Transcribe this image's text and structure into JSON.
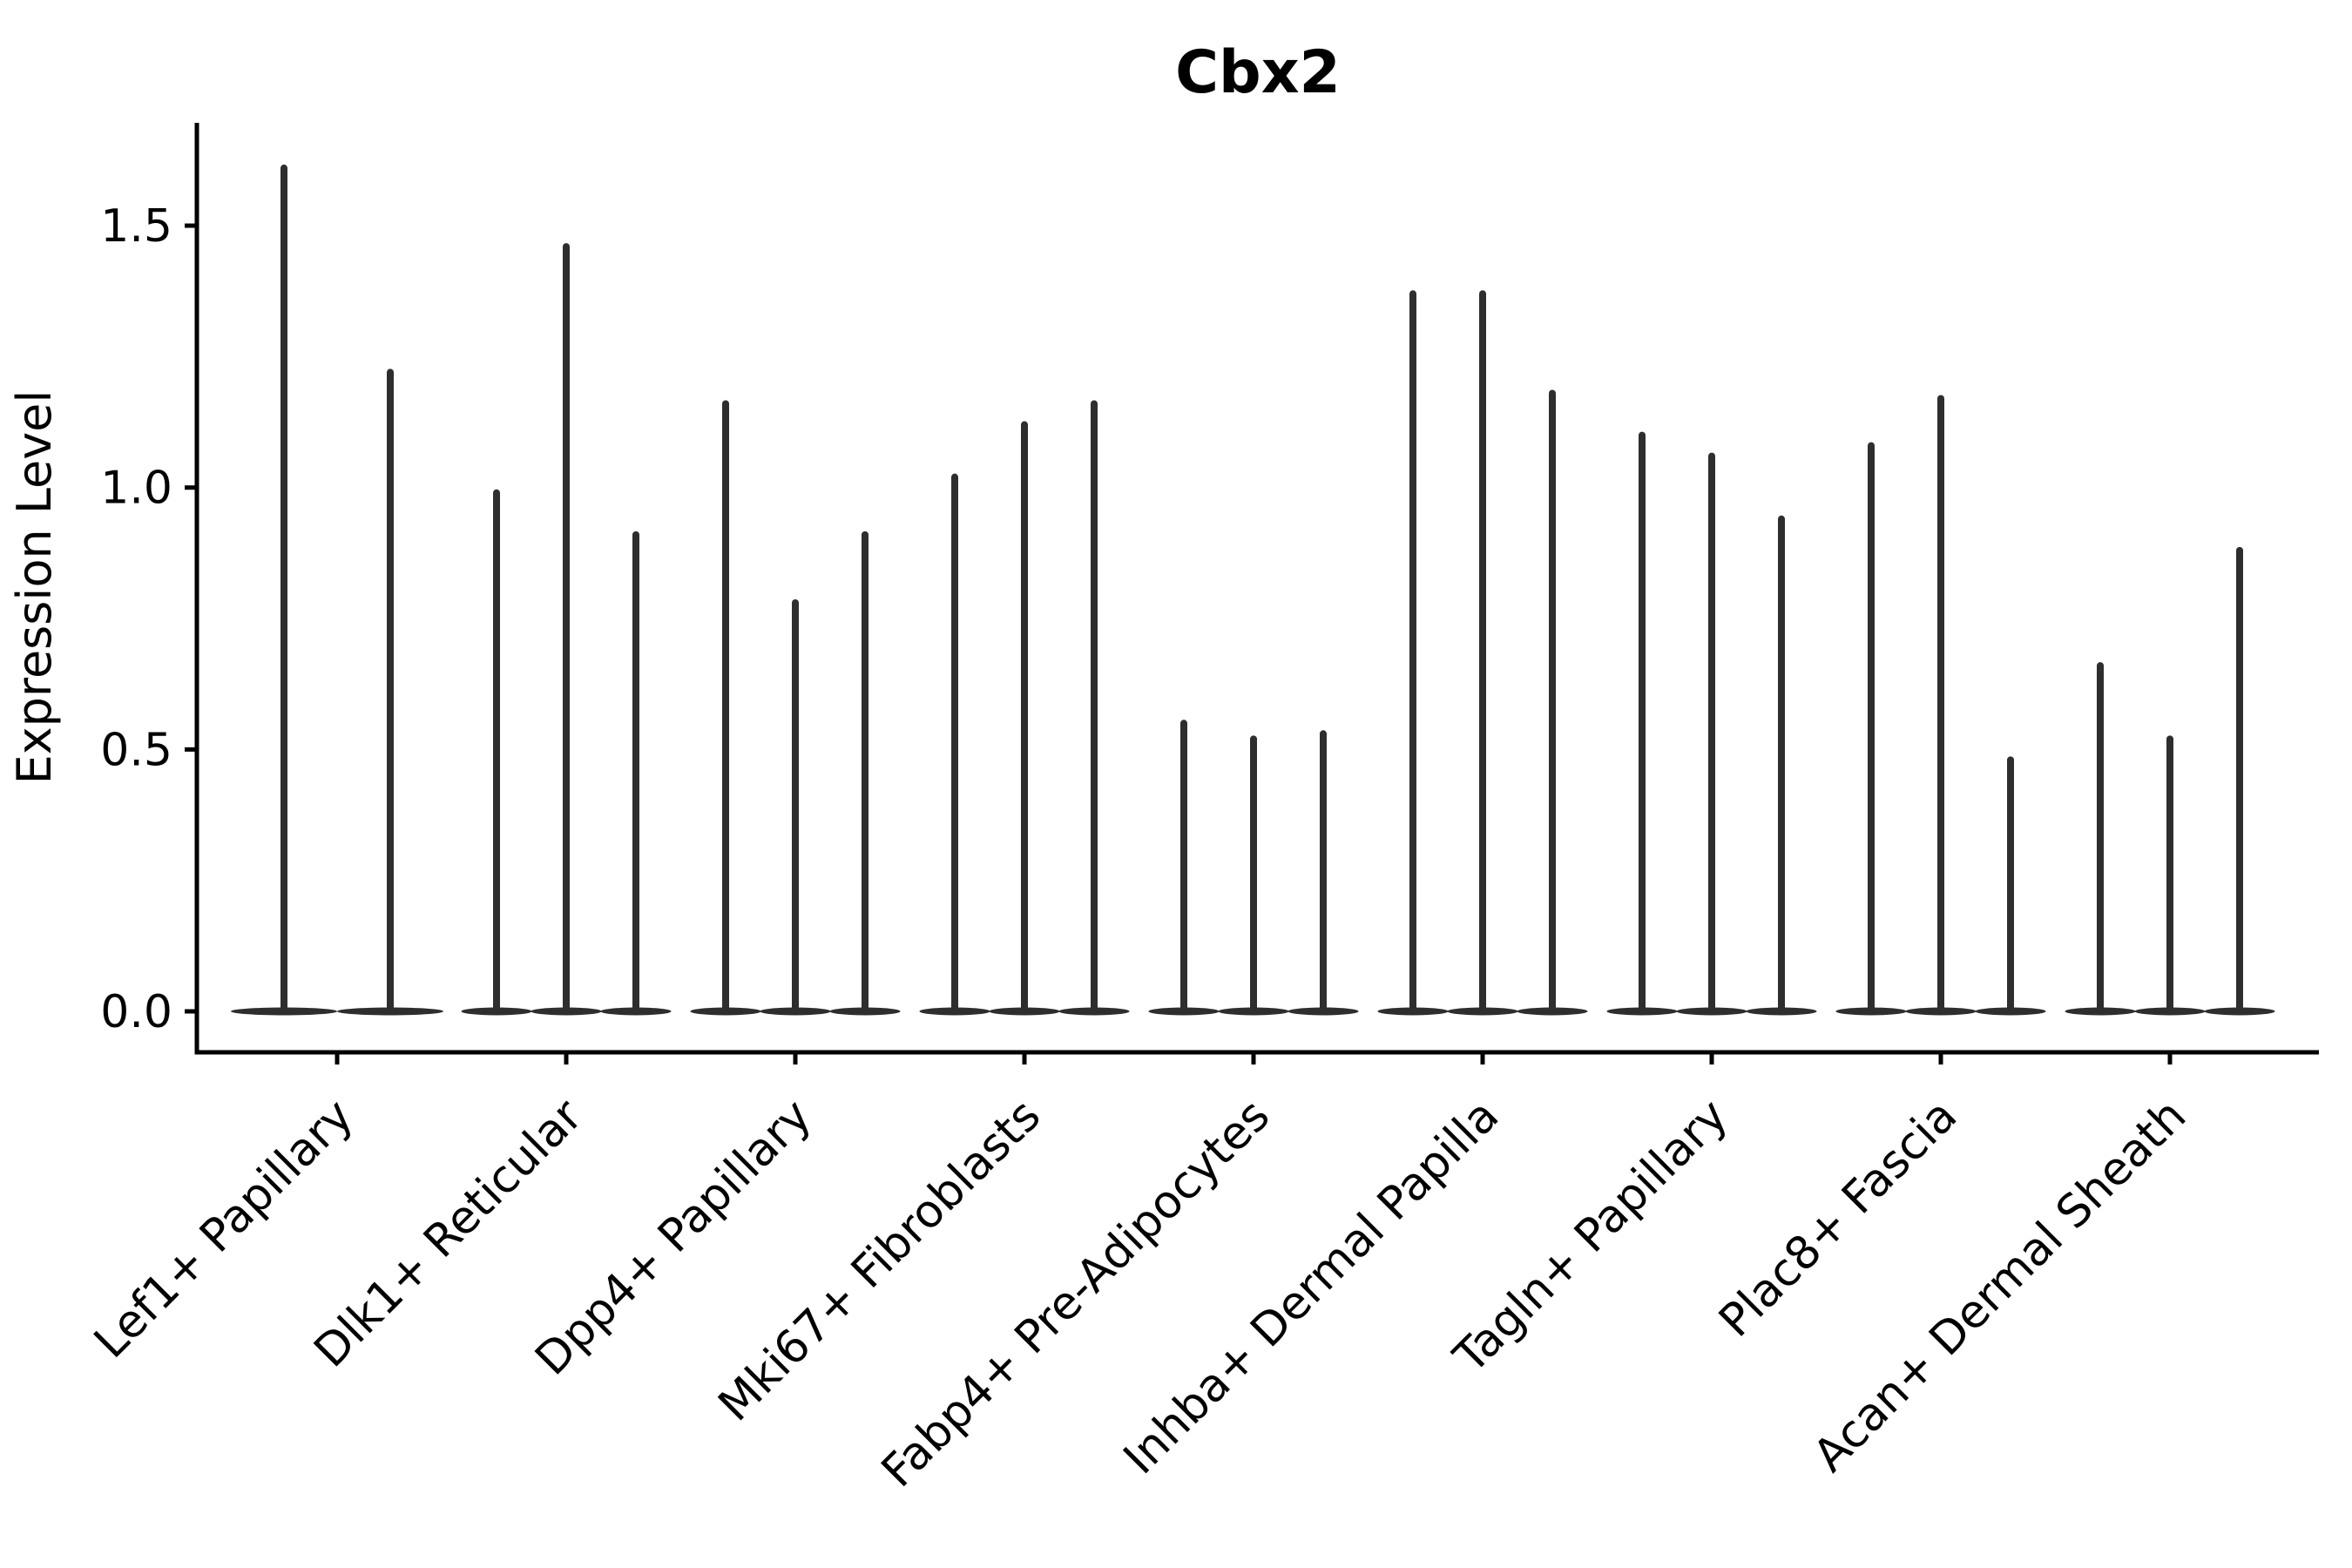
{
  "chart_data": {
    "type": "violin",
    "title": "Cbx2",
    "ylabel": "Expression Level",
    "xlabel": "",
    "yticks": [
      0.0,
      0.5,
      1.0,
      1.5
    ],
    "ylim": [
      -0.08,
      1.7
    ],
    "grid": false,
    "legend_position": "none",
    "background": "#ffffff",
    "violin_style": "flat base at zero with a thin vertical spike rising to the max expression value; group 1 has only 2 violins, all other groups have 3",
    "categories": [
      "Lef1+ Papillary",
      "Dlk1+ Reticular",
      "Dpp4+ Papillary",
      "Mki67+ Fibroblasts",
      "Fabp4+ Pre-Adipocytes",
      "Inhba+ Dermal Papilla",
      "Tagln+ Papillary",
      "Plac8+ Fascia",
      "Acan+ Dermal Sheath"
    ],
    "series": [
      {
        "category": "Lef1+ Papillary",
        "violin_max_values": [
          1.61,
          1.22
        ]
      },
      {
        "category": "Dlk1+ Reticular",
        "violin_max_values": [
          0.99,
          1.46,
          0.91
        ]
      },
      {
        "category": "Dpp4+ Papillary",
        "violin_max_values": [
          1.16,
          0.78,
          0.91
        ]
      },
      {
        "category": "Mki67+ Fibroblasts",
        "violin_max_values": [
          1.02,
          1.12,
          1.16
        ]
      },
      {
        "category": "Fabp4+ Pre-Adipocytes",
        "violin_max_values": [
          0.55,
          0.52,
          0.53
        ]
      },
      {
        "category": "Inhba+ Dermal Papilla",
        "violin_max_values": [
          1.37,
          1.37,
          1.18
        ]
      },
      {
        "category": "Tagln+ Papillary",
        "violin_max_values": [
          1.1,
          1.06,
          0.94
        ]
      },
      {
        "category": "Plac8+ Fascia",
        "violin_max_values": [
          1.08,
          1.17,
          0.48
        ]
      },
      {
        "category": "Acan+ Dermal Sheath",
        "violin_max_values": [
          0.66,
          0.52,
          0.88
        ]
      }
    ]
  },
  "colors": {
    "violin": "#2e2e2e",
    "axis": "#000000",
    "text": "#000000",
    "background": "#ffffff"
  }
}
